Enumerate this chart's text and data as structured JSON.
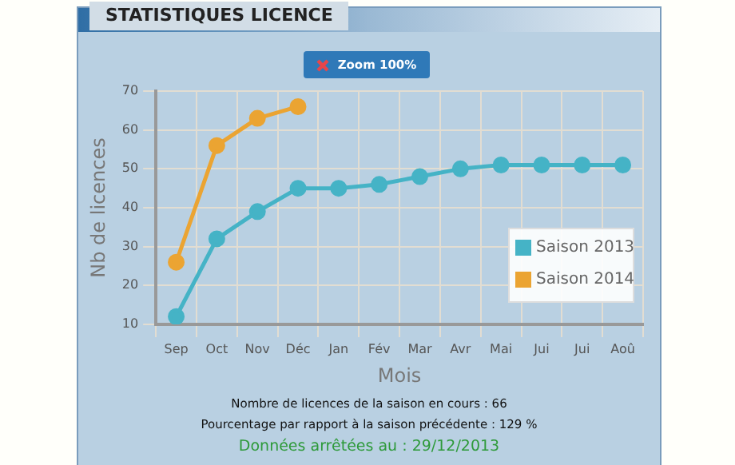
{
  "chart_data": {
    "type": "line",
    "title": "STATISTIQUES LICENCE",
    "xlabel": "Mois",
    "ylabel": "Nb de licences",
    "categories": [
      "Sep",
      "Oct",
      "Nov",
      "Déc",
      "Jan",
      "Fév",
      "Mar",
      "Avr",
      "Mai",
      "Jui",
      "Jui",
      "Aoû"
    ],
    "series": [
      {
        "name": "Saison 2013",
        "color": "#45b3c6",
        "values": [
          12,
          32,
          39,
          45,
          45,
          46,
          48,
          50,
          51,
          51,
          51,
          51
        ]
      },
      {
        "name": "Saison 2014",
        "color": "#eba432",
        "values": [
          26,
          56,
          63,
          66,
          null,
          null,
          null,
          null,
          null,
          null,
          null,
          null
        ]
      }
    ],
    "ylim": [
      10,
      70
    ],
    "yticks": [
      10,
      20,
      30,
      40,
      50,
      60,
      70
    ],
    "grid": true,
    "legend": "bottom right",
    "marker": "circle",
    "line_style": "solid",
    "annotations": [
      "Zoom 100%",
      "Nombre de licences de la saison en cours :  66",
      "Pourcentage par rapport à la saison précédente :  129 %",
      "Données arrêtées au : 29/12/2013"
    ]
  }
}
